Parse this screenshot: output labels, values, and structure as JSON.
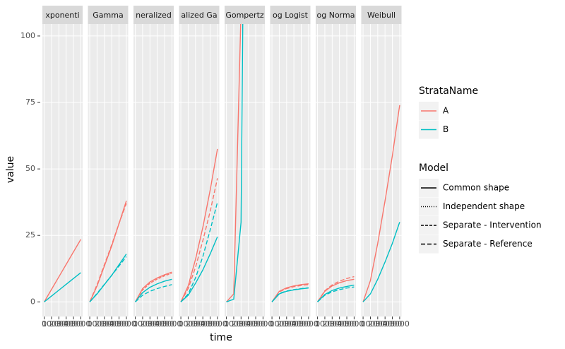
{
  "chart_data": {
    "type": "line",
    "x_label": "time",
    "y_label": "value",
    "x": [
      0,
      1000,
      2000,
      3000,
      4000,
      5000
    ],
    "xlim": [
      -250,
      5250
    ],
    "xticks": [
      0,
      1000,
      2000,
      3000,
      4000,
      5000
    ],
    "ylim": [
      -5.5,
      104.5
    ],
    "yticks": [
      0,
      25,
      50,
      75,
      100
    ],
    "grid": true,
    "legend_position": "right",
    "legends": [
      {
        "title": "StrataName",
        "entries": [
          {
            "label": "A",
            "color": "#F8766D"
          },
          {
            "label": "B",
            "color": "#00BFC4"
          }
        ]
      },
      {
        "title": "Model",
        "entries": [
          {
            "label": "Common shape",
            "dash": "none"
          },
          {
            "label": "Independent shape",
            "dash": "1,2"
          },
          {
            "label": "Separate - Intervention",
            "dash": "4,2"
          },
          {
            "label": "Separate - Reference",
            "dash": "6,3"
          }
        ]
      }
    ],
    "facets": [
      {
        "label": "xponenti",
        "series": [
          {
            "strata": "A",
            "model": "Common shape",
            "values": [
              0,
              4.7,
              9.4,
              14.1,
              18.8,
              23.5
            ]
          },
          {
            "strata": "B",
            "model": "Common shape",
            "values": [
              0,
              2.2,
              4.4,
              6.6,
              8.8,
              11
            ]
          }
        ]
      },
      {
        "label": "Gamma",
        "series": [
          {
            "strata": "A",
            "model": "Common shape",
            "values": [
              0,
              6,
              13.5,
              21,
              29.5,
              38
            ]
          },
          {
            "strata": "A",
            "model": "Separate - Reference",
            "values": [
              0,
              6.5,
              14,
              21.5,
              29.5,
              37
            ]
          },
          {
            "strata": "B",
            "model": "Common shape",
            "values": [
              0,
              3,
              6.5,
              10,
              14,
              18
            ]
          },
          {
            "strata": "B",
            "model": "Separate - Reference",
            "values": [
              0,
              3.2,
              6.6,
              10,
              13.5,
              17
            ]
          }
        ]
      },
      {
        "label": "neralized",
        "series": [
          {
            "strata": "A",
            "model": "Common shape",
            "values": [
              0,
              5,
              7.5,
              9,
              10.2,
              11.2
            ]
          },
          {
            "strata": "A",
            "model": "Separate - Intervention",
            "values": [
              0,
              4.5,
              7,
              8.6,
              9.8,
              10.8
            ]
          },
          {
            "strata": "B",
            "model": "Common shape",
            "values": [
              0,
              3.5,
              5.5,
              6.8,
              7.8,
              8.5
            ]
          },
          {
            "strata": "B",
            "model": "Separate - Reference",
            "values": [
              0,
              2.5,
              4,
              5,
              5.8,
              6.5
            ]
          }
        ]
      },
      {
        "label": "alized Ga",
        "series": [
          {
            "strata": "A",
            "model": "Common shape",
            "values": [
              0,
              6,
              16,
              28,
              42,
              57.5
            ]
          },
          {
            "strata": "A",
            "model": "Separate - Reference",
            "values": [
              0,
              5,
              13,
              23,
              34,
              46.5
            ]
          },
          {
            "strata": "B",
            "model": "Separate - Reference",
            "values": [
              0,
              3,
              9,
              17,
              27,
              37.5
            ]
          },
          {
            "strata": "B",
            "model": "Common shape",
            "values": [
              0,
              2.5,
              7,
              12,
              18,
              24.5
            ]
          }
        ]
      },
      {
        "label": "Gompertz",
        "series": [
          {
            "strata": "A",
            "model": "Common shape",
            "values": [
              0,
              3,
              110,
              null,
              null,
              null
            ]
          },
          {
            "strata": "B",
            "model": "Common shape",
            "values": [
              0,
              1,
              30,
              350,
              null,
              null
            ]
          }
        ]
      },
      {
        "label": "og Logist",
        "series": [
          {
            "strata": "A",
            "model": "Common shape",
            "values": [
              0,
              4,
              5.3,
              6,
              6.5,
              6.8
            ]
          },
          {
            "strata": "A",
            "model": "Separate - Reference",
            "values": [
              0,
              3.8,
              5,
              5.7,
              6.2,
              6.5
            ]
          },
          {
            "strata": "B",
            "model": "Common shape",
            "values": [
              0,
              3,
              4,
              4.5,
              4.9,
              5.2
            ]
          },
          {
            "strata": "B",
            "model": "Separate - Reference",
            "values": [
              0,
              3.2,
              4.1,
              4.6,
              5,
              5.3
            ]
          }
        ]
      },
      {
        "label": "og Norma",
        "series": [
          {
            "strata": "A",
            "model": "Common shape",
            "values": [
              0,
              4,
              6,
              7.2,
              8,
              8.5
            ]
          },
          {
            "strata": "A",
            "model": "Separate - Reference",
            "values": [
              0,
              4.2,
              6.4,
              7.8,
              8.8,
              9.5
            ]
          },
          {
            "strata": "B",
            "model": "Common shape",
            "values": [
              0,
              2.8,
              4.3,
              5.2,
              5.8,
              6.3
            ]
          },
          {
            "strata": "B",
            "model": "Separate - Reference",
            "values": [
              0,
              2.5,
              3.8,
              4.6,
              5.2,
              5.6
            ]
          }
        ]
      },
      {
        "label": "Weibull",
        "series": [
          {
            "strata": "A",
            "model": "Common shape",
            "values": [
              0,
              8,
              22,
              38,
              55,
              74
            ]
          },
          {
            "strata": "B",
            "model": "Common shape",
            "values": [
              0,
              3,
              8.5,
              15,
              22,
              30
            ]
          }
        ]
      }
    ]
  }
}
